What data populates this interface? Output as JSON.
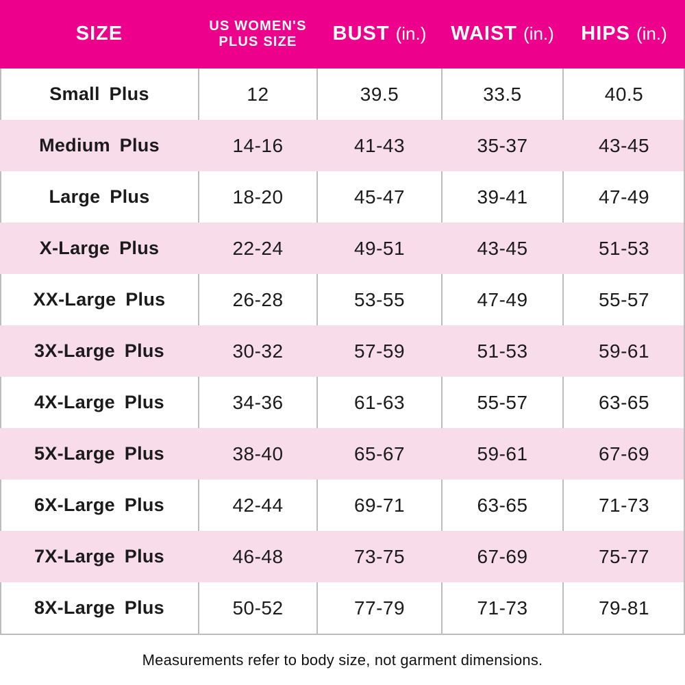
{
  "header": {
    "col1": "SIZE",
    "col2_line1": "US WOMEN'S",
    "col2_line2": "PLUS SIZE",
    "col3_label": "BUST",
    "col3_unit": "(in.)",
    "col4_label": "WAIST",
    "col4_unit": "(in.)",
    "col5_label": "HIPS",
    "col5_unit": "(in.)"
  },
  "footnote": "Measurements refer to body size, not garment dimensions.",
  "colors": {
    "header_bg": "#EC008C",
    "alt_row_bg": "#F8DCE9",
    "divider": "#BDBDBD",
    "header_text": "#FFFFFF",
    "body_text": "#1B1B1B"
  },
  "chart_data": {
    "type": "table",
    "columns": [
      "SIZE",
      "US WOMEN'S PLUS SIZE",
      "BUST (in.)",
      "WAIST (in.)",
      "HIPS (in.)"
    ],
    "rows": [
      [
        "Small Plus",
        "12",
        "39.5",
        "33.5",
        "40.5"
      ],
      [
        "Medium Plus",
        "14-16",
        "41-43",
        "35-37",
        "43-45"
      ],
      [
        "Large Plus",
        "18-20",
        "45-47",
        "39-41",
        "47-49"
      ],
      [
        "X-Large Plus",
        "22-24",
        "49-51",
        "43-45",
        "51-53"
      ],
      [
        "XX-Large Plus",
        "26-28",
        "53-55",
        "47-49",
        "55-57"
      ],
      [
        "3X-Large Plus",
        "30-32",
        "57-59",
        "51-53",
        "59-61"
      ],
      [
        "4X-Large Plus",
        "34-36",
        "61-63",
        "55-57",
        "63-65"
      ],
      [
        "5X-Large Plus",
        "38-40",
        "65-67",
        "59-61",
        "67-69"
      ],
      [
        "6X-Large Plus",
        "42-44",
        "69-71",
        "63-65",
        "71-73"
      ],
      [
        "7X-Large Plus",
        "46-48",
        "73-75",
        "67-69",
        "75-77"
      ],
      [
        "8X-Large Plus",
        "50-52",
        "77-79",
        "71-73",
        "79-81"
      ]
    ],
    "footnote": "Measurements refer to body size, not garment dimensions.",
    "layout": {
      "alt_rows_shaded": [
        2,
        4,
        6,
        8,
        10
      ],
      "grid": "vertical-dividers-on-white-rows"
    }
  }
}
